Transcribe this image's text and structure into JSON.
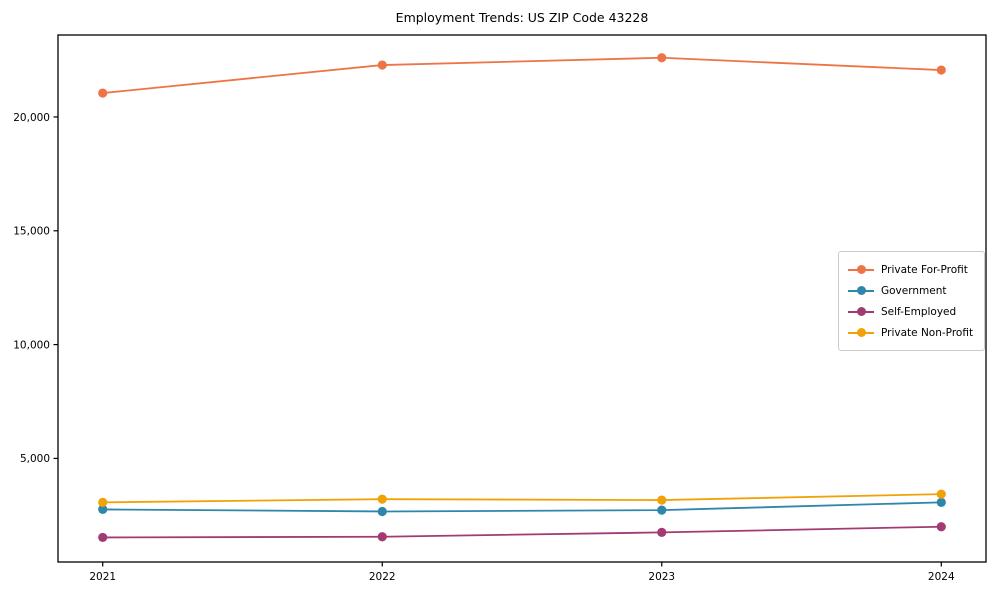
{
  "chart_data": {
    "type": "line",
    "title": "Employment Trends: US ZIP Code 43228",
    "xlabel": "",
    "ylabel": "",
    "x": [
      2021,
      2022,
      2023,
      2024
    ],
    "x_tick_labels": [
      "2021",
      "2022",
      "2023",
      "2024"
    ],
    "series": [
      {
        "name": "Private For-Profit",
        "color": "#ED7545",
        "values": [
          21050,
          22280,
          22600,
          22060
        ]
      },
      {
        "name": "Government",
        "color": "#2E86AB",
        "values": [
          2760,
          2670,
          2730,
          3070
        ]
      },
      {
        "name": "Self-Employed",
        "color": "#A23B72",
        "values": [
          1530,
          1560,
          1750,
          2000
        ]
      },
      {
        "name": "Private Non-Profit",
        "color": "#F1A208",
        "values": [
          3070,
          3210,
          3170,
          3430
        ]
      }
    ],
    "yticks": [
      5000,
      10000,
      15000,
      20000
    ],
    "ytick_labels": [
      "5,000",
      "10,000",
      "15,000",
      "20,000"
    ],
    "xlim": [
      2020.84,
      2024.16
    ],
    "ylim": [
      450,
      23600
    ],
    "grid": false,
    "legend_position": "center-right",
    "axis_color": "#000000",
    "background_color": "#ffffff"
  }
}
